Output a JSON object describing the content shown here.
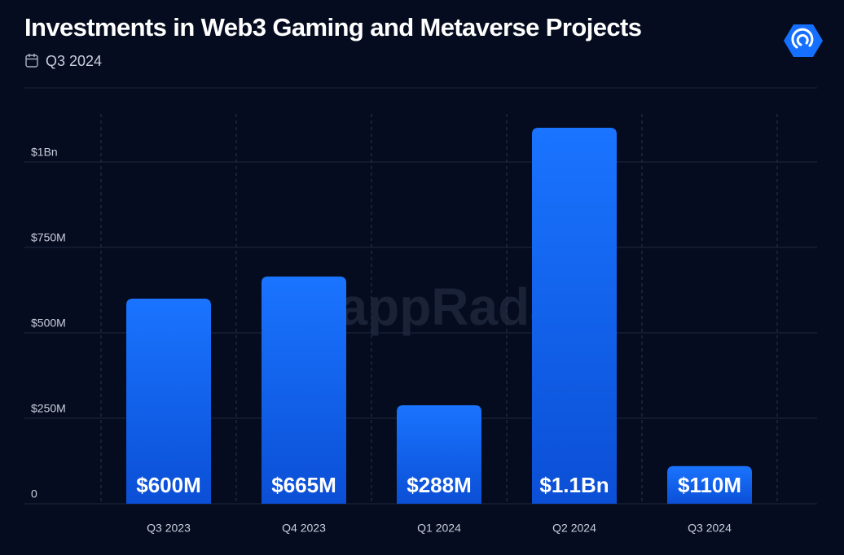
{
  "chart_data": {
    "type": "bar",
    "title": "Investments in Web3 Gaming and Metaverse Projects",
    "subtitle": "Q3 2024",
    "watermark": "DappRadar",
    "categories": [
      "Q3 2023",
      "Q4 2023",
      "Q1 2024",
      "Q2 2024",
      "Q3 2024"
    ],
    "values": [
      600,
      665,
      288,
      1100,
      110
    ],
    "value_labels": [
      "$600M",
      "$665M",
      "$288M",
      "$1.1Bn",
      "$110M"
    ],
    "color": "#1570ff",
    "ylim": [
      0,
      1200
    ],
    "yticks": [
      0,
      {
        "value": 250,
        "label": "$250M"
      },
      {
        "value": 500,
        "label": "$500M"
      },
      {
        "value": 750,
        "label": "$750M"
      },
      {
        "value": 1000,
        "label": "$1Bn"
      }
    ],
    "grid": true
  }
}
